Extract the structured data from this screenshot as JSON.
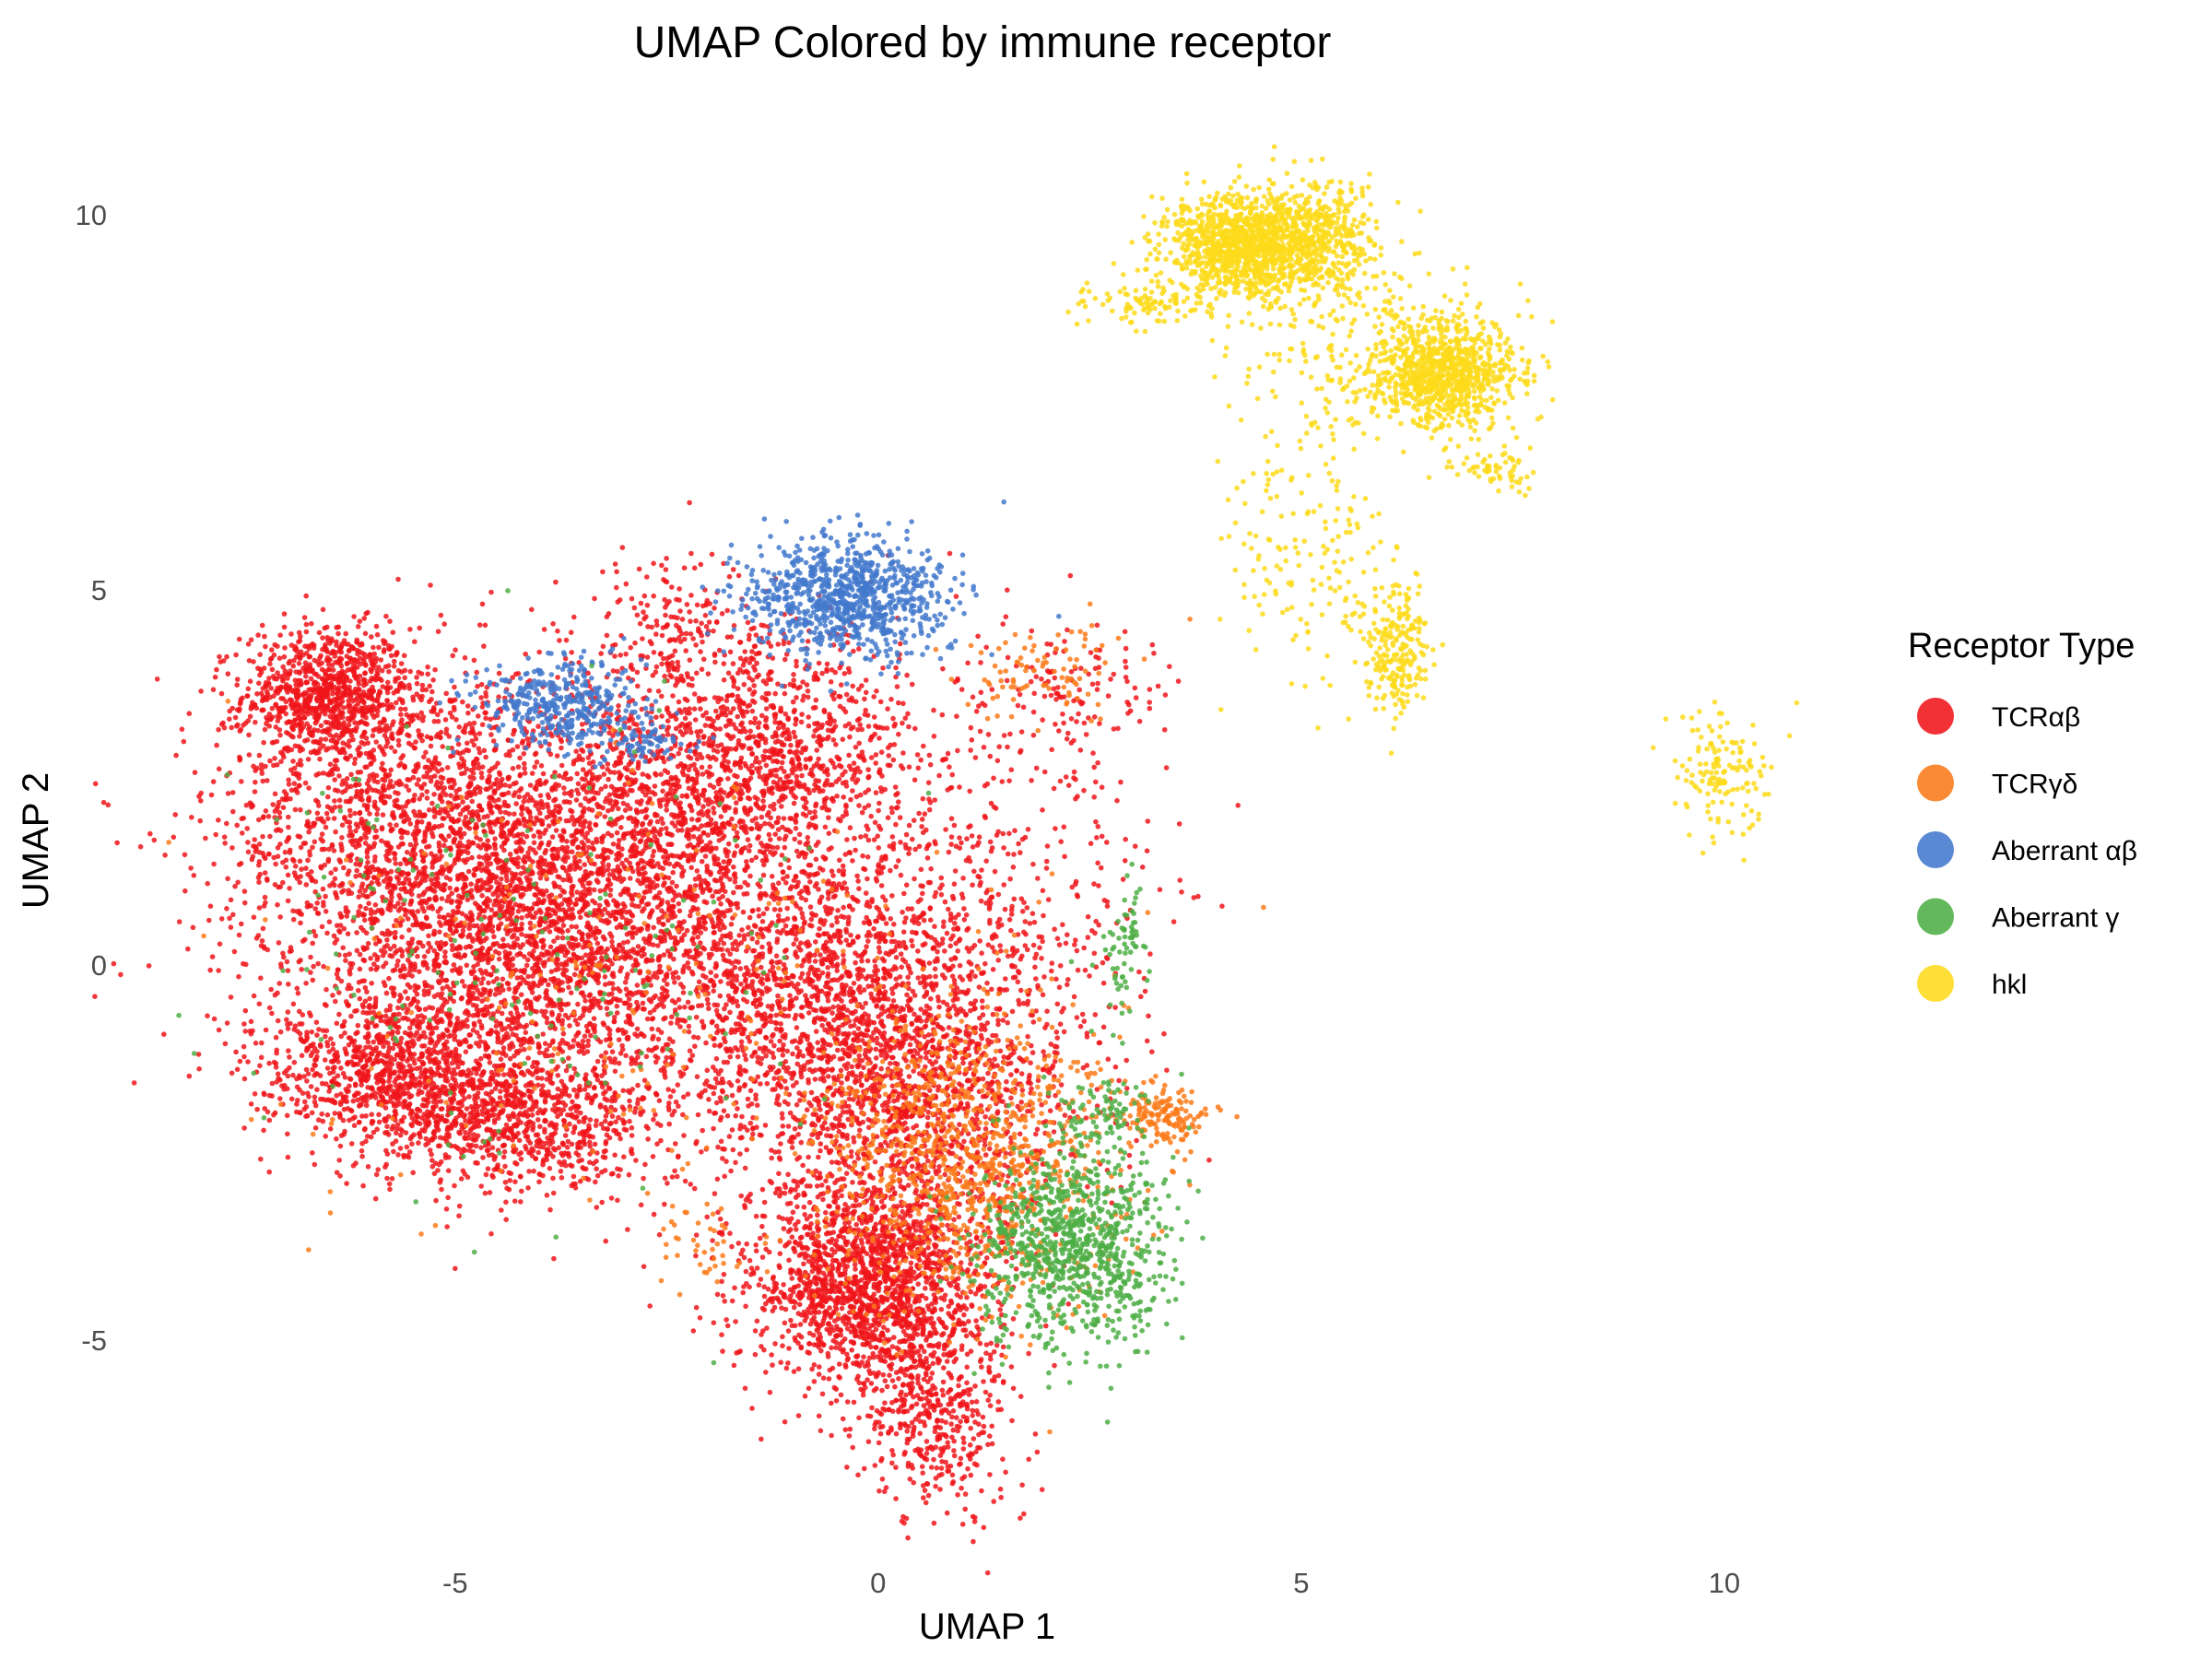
{
  "chart_data": {
    "type": "scatter",
    "title": "UMAP Colored by immune receptor",
    "xlabel": "UMAP 1",
    "ylabel": "UMAP 2",
    "xlim": [
      -8.2,
      15.0
    ],
    "ylim": [
      -7.9,
      10.9
    ],
    "xticks": [
      -5,
      0,
      5,
      10
    ],
    "yticks": [
      -5,
      0,
      5,
      10
    ],
    "grid": false,
    "legend": {
      "title": "Receptor Type",
      "position": "right"
    },
    "series": [
      {
        "name": "TCRαβ",
        "color": "#f0151a",
        "clusters": [
          {
            "x": -6.5,
            "y": 3.6,
            "sx": 0.5,
            "sy": 0.45,
            "n": 900
          },
          {
            "x": -5.4,
            "y": 1.9,
            "sx": 1.2,
            "sy": 1.1,
            "n": 1700
          },
          {
            "x": -4.1,
            "y": 0.2,
            "sx": 1.3,
            "sy": 1.2,
            "n": 2600
          },
          {
            "x": -5.8,
            "y": -1.4,
            "sx": 0.8,
            "sy": 0.45,
            "n": 800
          },
          {
            "x": -4.3,
            "y": -2.1,
            "sx": 0.9,
            "sy": 0.45,
            "n": 800
          },
          {
            "x": -2.7,
            "y": 2.0,
            "sx": 0.8,
            "sy": 1.1,
            "n": 800
          },
          {
            "x": -1.3,
            "y": 2.7,
            "sx": 0.8,
            "sy": 0.9,
            "n": 1100
          },
          {
            "x": -0.7,
            "y": -0.3,
            "sx": 1.1,
            "sy": 1.1,
            "n": 1400
          },
          {
            "x": 0.4,
            "y": -1.8,
            "sx": 1.0,
            "sy": 1.0,
            "n": 1400
          },
          {
            "x": -0.1,
            "y": -4.3,
            "sx": 0.7,
            "sy": 0.7,
            "n": 1700
          },
          {
            "x": 0.7,
            "y": -6.0,
            "sx": 0.45,
            "sy": 0.7,
            "n": 450
          },
          {
            "x": 1.2,
            "y": 1.2,
            "sx": 1.1,
            "sy": 1.4,
            "n": 500
          },
          {
            "x": 2.3,
            "y": 3.7,
            "sx": 0.6,
            "sy": 0.4,
            "n": 100
          },
          {
            "x": -2.5,
            "y": 4.6,
            "sx": 0.3,
            "sy": 0.4,
            "n": 120
          }
        ]
      },
      {
        "name": "TCRγδ",
        "color": "#fb7a1a",
        "clusters": [
          {
            "x": 1.1,
            "y": -2.6,
            "sx": 0.9,
            "sy": 1.0,
            "n": 1000
          },
          {
            "x": 3.4,
            "y": -2.0,
            "sx": 0.3,
            "sy": 0.2,
            "n": 150
          },
          {
            "x": 2.0,
            "y": 3.9,
            "sx": 0.5,
            "sy": 0.3,
            "n": 90
          },
          {
            "x": -2.0,
            "y": -3.7,
            "sx": 0.3,
            "sy": 0.25,
            "n": 40
          },
          {
            "x": -3.0,
            "y": -0.5,
            "sx": 2.2,
            "sy": 1.5,
            "n": 220
          }
        ]
      },
      {
        "name": "Aberrant αβ",
        "color": "#4379cd",
        "clusters": [
          {
            "x": -0.4,
            "y": 4.9,
            "sx": 0.6,
            "sy": 0.4,
            "n": 900
          },
          {
            "x": -3.8,
            "y": 3.5,
            "sx": 0.45,
            "sy": 0.3,
            "n": 380
          },
          {
            "x": -2.8,
            "y": 3.0,
            "sx": 0.3,
            "sy": 0.2,
            "n": 80
          }
        ]
      },
      {
        "name": "Aberrant γ",
        "color": "#4dae45",
        "clusters": [
          {
            "x": 2.3,
            "y": -3.8,
            "sx": 0.55,
            "sy": 0.65,
            "n": 900
          },
          {
            "x": 2.9,
            "y": 0.2,
            "sx": 0.15,
            "sy": 0.5,
            "n": 70
          },
          {
            "x": 2.6,
            "y": -2.0,
            "sx": 0.3,
            "sy": 0.3,
            "n": 90
          },
          {
            "x": -4.2,
            "y": 0.0,
            "sx": 1.6,
            "sy": 1.6,
            "n": 160
          }
        ]
      },
      {
        "name": "hkl",
        "color": "#fddb1b",
        "clusters": [
          {
            "x": 4.4,
            "y": 9.6,
            "sx": 0.5,
            "sy": 0.35,
            "n": 1300
          },
          {
            "x": 5.3,
            "y": 9.7,
            "sx": 0.3,
            "sy": 0.4,
            "n": 260
          },
          {
            "x": 6.7,
            "y": 7.9,
            "sx": 0.45,
            "sy": 0.35,
            "n": 900
          },
          {
            "x": 3.1,
            "y": 8.8,
            "sx": 0.35,
            "sy": 0.12,
            "n": 90
          },
          {
            "x": 5.1,
            "y": 5.8,
            "sx": 0.5,
            "sy": 0.9,
            "n": 170
          },
          {
            "x": 6.1,
            "y": 4.2,
            "sx": 0.18,
            "sy": 0.45,
            "n": 230
          },
          {
            "x": 7.3,
            "y": 6.6,
            "sx": 0.25,
            "sy": 0.2,
            "n": 60
          },
          {
            "x": 10.0,
            "y": 2.5,
            "sx": 0.3,
            "sy": 0.4,
            "n": 140
          },
          {
            "x": 5.6,
            "y": 8.3,
            "sx": 0.8,
            "sy": 0.6,
            "n": 200
          }
        ]
      }
    ]
  }
}
